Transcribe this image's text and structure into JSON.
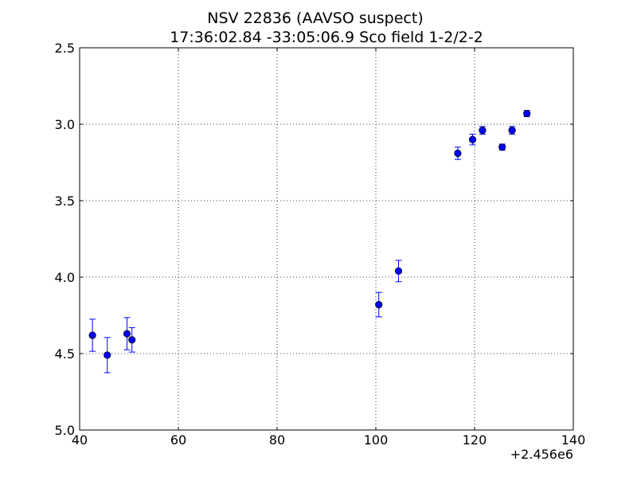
{
  "chart_data": {
    "type": "scatter",
    "title": "NSV 22836  (AAVSO suspect)",
    "subtitle": "17:36:02.84 -33:05:06.9 Sco field 1-2/2-2",
    "xlabel": "",
    "ylabel": "",
    "x_offset_label": "+2.456e6",
    "xlim": [
      40,
      140
    ],
    "ylim": [
      2.5,
      5.0
    ],
    "y_inverted": true,
    "x_ticks": [
      40,
      60,
      80,
      100,
      120,
      140
    ],
    "x_tick_labels": [
      "40",
      "60",
      "80",
      "100",
      "120",
      "140"
    ],
    "y_ticks": [
      2.5,
      3.0,
      3.5,
      4.0,
      4.5,
      5.0
    ],
    "y_tick_labels": [
      "2.5",
      "3.0",
      "3.5",
      "4.0",
      "4.5",
      "5.0"
    ],
    "grid": true,
    "marker_color": "#0000ff",
    "points": [
      {
        "x": 42.6,
        "y": 4.38,
        "err": 0.105
      },
      {
        "x": 45.6,
        "y": 4.51,
        "err": 0.115
      },
      {
        "x": 49.6,
        "y": 4.37,
        "err": 0.105
      },
      {
        "x": 50.6,
        "y": 4.41,
        "err": 0.08
      },
      {
        "x": 100.6,
        "y": 4.18,
        "err": 0.08
      },
      {
        "x": 104.6,
        "y": 3.96,
        "err": 0.07
      },
      {
        "x": 116.6,
        "y": 3.19,
        "err": 0.04
      },
      {
        "x": 119.6,
        "y": 3.1,
        "err": 0.035
      },
      {
        "x": 121.6,
        "y": 3.04,
        "err": 0.025
      },
      {
        "x": 125.6,
        "y": 3.15,
        "err": 0.02
      },
      {
        "x": 127.6,
        "y": 3.04,
        "err": 0.025
      },
      {
        "x": 130.6,
        "y": 2.93,
        "err": 0.02
      }
    ]
  }
}
